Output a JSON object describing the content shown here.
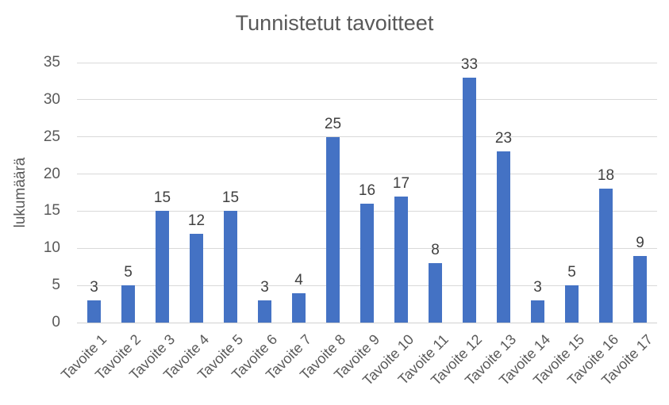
{
  "chart_data": {
    "type": "bar",
    "title": "Tunnistetut tavoitteet",
    "xlabel": "",
    "ylabel": "lukumäärä",
    "categories": [
      "Tavoite 1",
      "Tavoite 2",
      "Tavoite 3",
      "Tavoite 4",
      "Tavoite 5",
      "Tavoite 6",
      "Tavoite 7",
      "Tavoite 8",
      "Tavoite 9",
      "Tavoite 10",
      "Tavoite 11",
      "Tavoite 12",
      "Tavoite 13",
      "Tavoite 14",
      "Tavoite 15",
      "Tavoite 16",
      "Tavoite 17"
    ],
    "values": [
      3,
      5,
      15,
      12,
      15,
      3,
      4,
      25,
      16,
      17,
      8,
      33,
      23,
      3,
      5,
      18,
      9
    ],
    "ylim": [
      0,
      35
    ],
    "ytick_step": 5,
    "ytick_labels": [
      "0",
      "5",
      "10",
      "15",
      "20",
      "25",
      "30",
      "35"
    ],
    "grid": true,
    "legend": false,
    "data_labels": true,
    "x_tick_rotation": -45,
    "colors": {
      "bar": "#4472C4",
      "gridline": "#D9D9D9",
      "axis_line": "#D0D0D0",
      "text": "#595959",
      "data_label": "#404040",
      "background": "#FFFFFF"
    }
  }
}
